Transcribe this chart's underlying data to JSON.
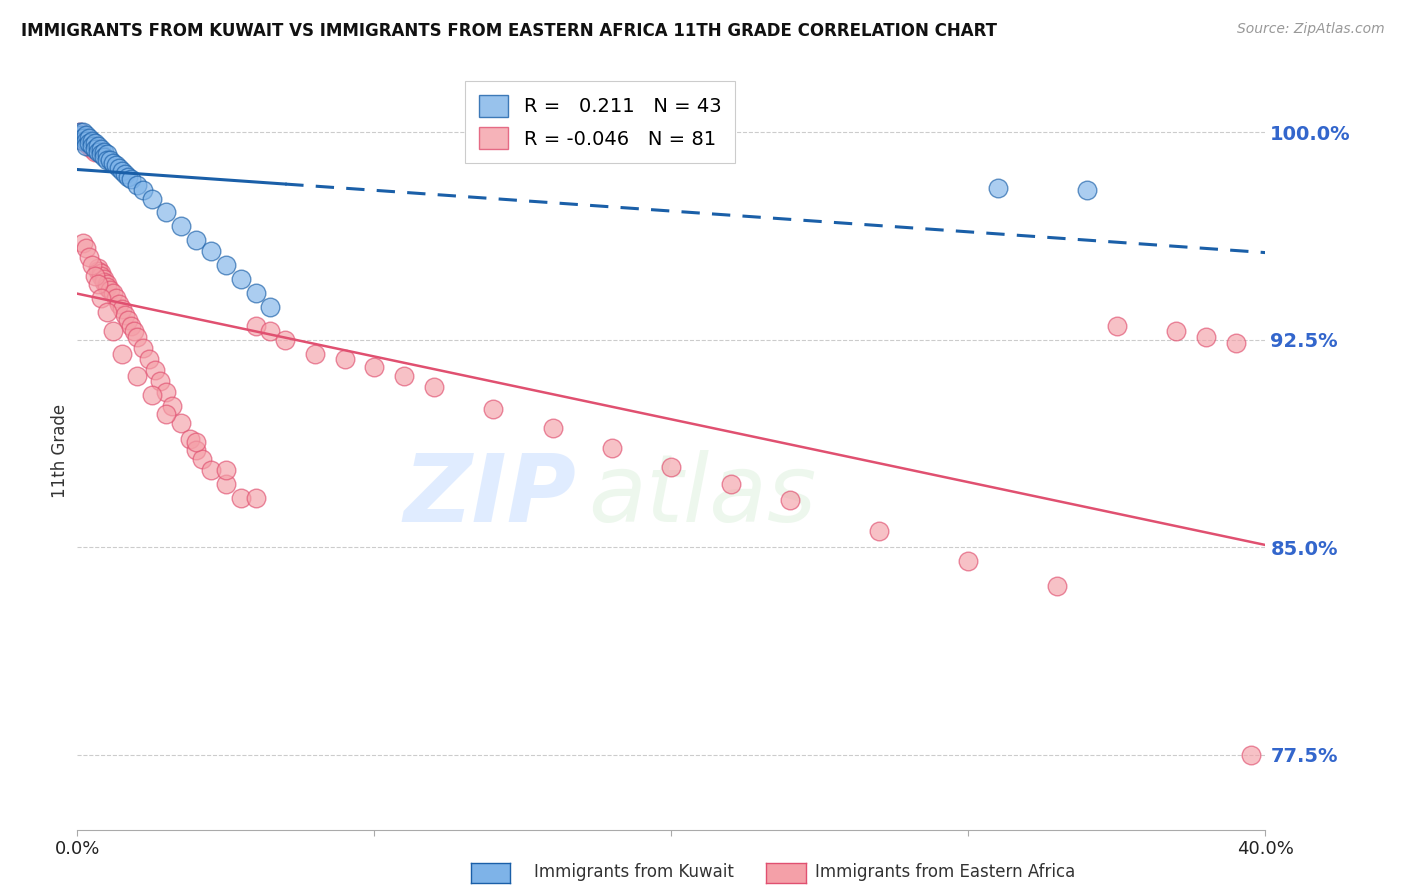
{
  "title": "IMMIGRANTS FROM KUWAIT VS IMMIGRANTS FROM EASTERN AFRICA 11TH GRADE CORRELATION CHART",
  "source_text": "Source: ZipAtlas.com",
  "ylabel": "11th Grade",
  "y_tick_labels": [
    "77.5%",
    "85.0%",
    "92.5%",
    "100.0%"
  ],
  "y_tick_vals": [
    0.775,
    0.85,
    0.925,
    1.0
  ],
  "xlim": [
    0.0,
    0.4
  ],
  "ylim": [
    0.748,
    1.022
  ],
  "legend_r_kuwait": "0.211",
  "legend_n_kuwait": "43",
  "legend_r_eastern": "-0.046",
  "legend_n_eastern": "81",
  "blue_color": "#7EB3E8",
  "pink_color": "#F4A0A8",
  "trendline_blue": "#1A5FA8",
  "trendline_pink": "#E05070",
  "watermark_zip": "ZIP",
  "watermark_atlas": "atlas",
  "kuwait_x": [
    0.001,
    0.001,
    0.002,
    0.002,
    0.002,
    0.003,
    0.003,
    0.003,
    0.004,
    0.004,
    0.005,
    0.005,
    0.006,
    0.006,
    0.007,
    0.007,
    0.008,
    0.008,
    0.009,
    0.009,
    0.01,
    0.01,
    0.011,
    0.012,
    0.013,
    0.014,
    0.015,
    0.016,
    0.017,
    0.018,
    0.02,
    0.022,
    0.025,
    0.03,
    0.035,
    0.04,
    0.045,
    0.05,
    0.055,
    0.06,
    0.065,
    0.31,
    0.34
  ],
  "kuwait_y": [
    1.0,
    0.999,
    1.0,
    0.998,
    0.997,
    0.999,
    0.997,
    0.995,
    0.998,
    0.996,
    0.997,
    0.995,
    0.996,
    0.994,
    0.995,
    0.993,
    0.994,
    0.992,
    0.993,
    0.991,
    0.992,
    0.99,
    0.99,
    0.989,
    0.988,
    0.987,
    0.986,
    0.985,
    0.984,
    0.983,
    0.981,
    0.979,
    0.976,
    0.971,
    0.966,
    0.961,
    0.957,
    0.952,
    0.947,
    0.942,
    0.937,
    0.98,
    0.979
  ],
  "eastern_x": [
    0.001,
    0.001,
    0.002,
    0.002,
    0.003,
    0.003,
    0.004,
    0.004,
    0.005,
    0.005,
    0.006,
    0.006,
    0.007,
    0.007,
    0.008,
    0.008,
    0.009,
    0.009,
    0.01,
    0.01,
    0.011,
    0.012,
    0.013,
    0.014,
    0.015,
    0.016,
    0.017,
    0.018,
    0.019,
    0.02,
    0.022,
    0.024,
    0.026,
    0.028,
    0.03,
    0.032,
    0.035,
    0.038,
    0.04,
    0.042,
    0.045,
    0.05,
    0.055,
    0.06,
    0.065,
    0.07,
    0.08,
    0.09,
    0.1,
    0.11,
    0.12,
    0.14,
    0.16,
    0.18,
    0.2,
    0.22,
    0.24,
    0.27,
    0.3,
    0.33,
    0.002,
    0.003,
    0.004,
    0.005,
    0.006,
    0.007,
    0.008,
    0.01,
    0.012,
    0.015,
    0.02,
    0.025,
    0.03,
    0.04,
    0.05,
    0.06,
    0.35,
    0.37,
    0.38,
    0.39,
    0.395
  ],
  "eastern_y": [
    1.0,
    0.998,
    0.999,
    0.997,
    0.998,
    0.996,
    0.997,
    0.995,
    0.996,
    0.994,
    0.995,
    0.993,
    0.951,
    0.95,
    0.949,
    0.948,
    0.947,
    0.946,
    0.945,
    0.944,
    0.943,
    0.942,
    0.94,
    0.938,
    0.936,
    0.934,
    0.932,
    0.93,
    0.928,
    0.926,
    0.922,
    0.918,
    0.914,
    0.91,
    0.906,
    0.901,
    0.895,
    0.889,
    0.885,
    0.882,
    0.878,
    0.873,
    0.868,
    0.93,
    0.928,
    0.925,
    0.92,
    0.918,
    0.915,
    0.912,
    0.908,
    0.9,
    0.893,
    0.886,
    0.879,
    0.873,
    0.867,
    0.856,
    0.845,
    0.836,
    0.96,
    0.958,
    0.955,
    0.952,
    0.948,
    0.945,
    0.94,
    0.935,
    0.928,
    0.92,
    0.912,
    0.905,
    0.898,
    0.888,
    0.878,
    0.868,
    0.93,
    0.928,
    0.926,
    0.924,
    0.775
  ]
}
